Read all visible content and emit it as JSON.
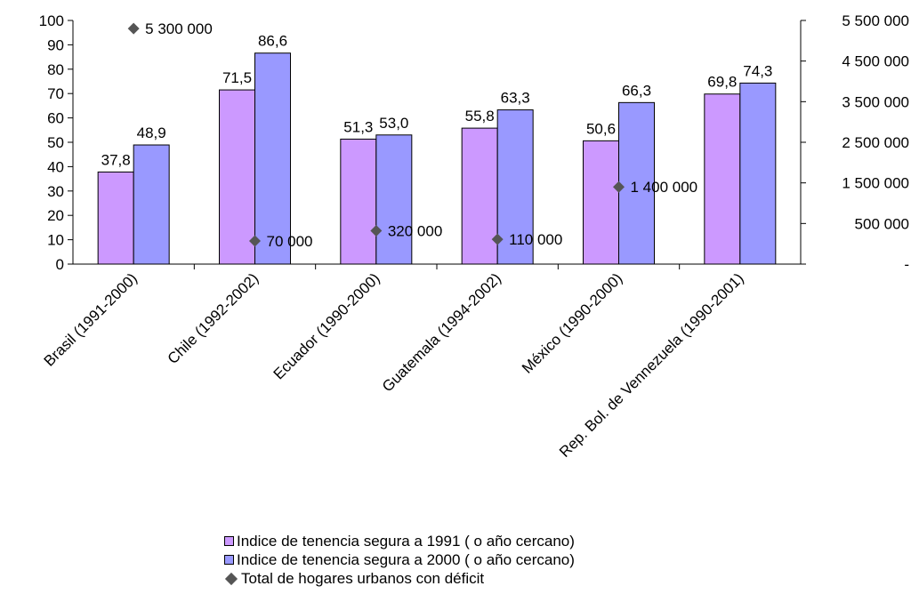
{
  "chart_data": {
    "type": "bar",
    "categories": [
      "Brasil (1991-2000)",
      "Chile (1992-2002)",
      "Ecuador (1990-2000)",
      "Guatemala (1994-2002)",
      "México (1990-2000)",
      "Rep. Bol. de Vennezuela (1990-2001)"
    ],
    "series": [
      {
        "name": "Indice de tenencia segura a 1991 ( o año cercano)",
        "type": "bar",
        "axis": "left",
        "color": "#CC99FF",
        "values": [
          37.8,
          71.5,
          51.3,
          55.8,
          50.6,
          69.8
        ],
        "labels": [
          "37,8",
          "71,5",
          "51,3",
          "55,8",
          "50,6",
          "69,8"
        ]
      },
      {
        "name": "Indice de tenencia segura a 2000 ( o año cercano)",
        "type": "bar",
        "axis": "left",
        "color": "#9999FF",
        "values": [
          48.9,
          86.6,
          53.0,
          63.3,
          66.3,
          74.3
        ],
        "labels": [
          "48,9",
          "86,6",
          "53,0",
          "63,3",
          "66,3",
          "74,3"
        ]
      },
      {
        "name": "Total  de hogares urbanos con déficit",
        "type": "scatter",
        "axis": "right",
        "marker": "diamond",
        "color": "#555555",
        "points": [
          {
            "category": "Brasil (1991-2000)",
            "value": 5300000,
            "label": "5 300 000"
          },
          {
            "category": "Chile (1992-2002)",
            "value": 70000,
            "label": "70 000"
          },
          {
            "category": "Ecuador (1990-2000)",
            "value": 320000,
            "label": "320 000"
          },
          {
            "category": "Guatemala (1994-2002)",
            "value": 110000,
            "label": "110 000"
          },
          {
            "category": "México (1990-2000)",
            "value": 1400000,
            "label": "1 400 000"
          }
        ]
      }
    ],
    "ylim": [
      0,
      100
    ],
    "yticks": [
      0,
      10,
      20,
      30,
      40,
      50,
      60,
      70,
      80,
      90,
      100
    ],
    "y2lim": [
      -500000,
      5500000
    ],
    "y2ticks": [
      -500000,
      500000,
      1500000,
      2500000,
      3500000,
      4500000,
      5500000
    ],
    "y2ticklabels": [
      "-",
      "500  000",
      "1 500  000",
      "2 500  000",
      "3 500  000",
      "4 500  000",
      "5 500  000"
    ],
    "grid": false,
    "legend_position": "bottom"
  }
}
